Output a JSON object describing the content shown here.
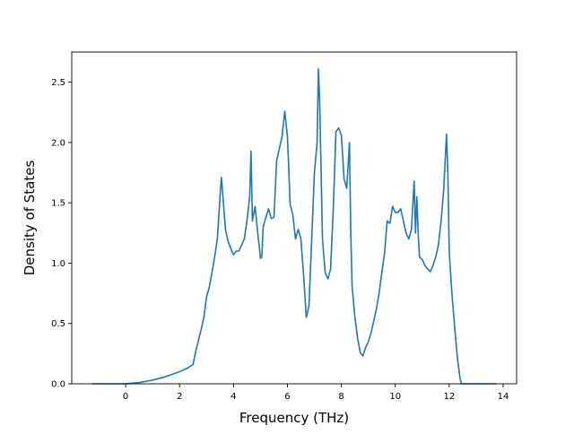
{
  "chart_data": {
    "type": "line",
    "title": "",
    "xlabel": "Frequency (THz)",
    "ylabel": "Density of States",
    "xlim": [
      -2.0,
      14.5
    ],
    "ylim": [
      0.0,
      2.75
    ],
    "xticks": [
      0,
      2,
      4,
      6,
      8,
      10,
      12,
      14
    ],
    "yticks": [
      0.0,
      0.5,
      1.0,
      1.5,
      2.0,
      2.5
    ],
    "xtick_labels": [
      "0",
      "2",
      "4",
      "6",
      "8",
      "10",
      "12",
      "14"
    ],
    "ytick_labels": [
      "0.0",
      "0.5",
      "1.0",
      "1.5",
      "2.0",
      "2.5"
    ],
    "grid": false,
    "legend": "none",
    "series": [
      {
        "name": "",
        "color": "#1f77b4",
        "x": [
          -1.25,
          0.0,
          0.5,
          1.0,
          1.5,
          2.0,
          2.3,
          2.5,
          2.6,
          2.8,
          2.9,
          3.0,
          3.1,
          3.2,
          3.3,
          3.4,
          3.5,
          3.55,
          3.6,
          3.7,
          3.8,
          3.9,
          4.0,
          4.1,
          4.2,
          4.3,
          4.4,
          4.5,
          4.6,
          4.65,
          4.7,
          4.8,
          4.9,
          5.0,
          5.05,
          5.1,
          5.2,
          5.3,
          5.4,
          5.5,
          5.6,
          5.7,
          5.8,
          5.9,
          6.0,
          6.05,
          6.1,
          6.2,
          6.3,
          6.4,
          6.5,
          6.6,
          6.7,
          6.8,
          6.9,
          7.0,
          7.1,
          7.15,
          7.2,
          7.3,
          7.4,
          7.5,
          7.6,
          7.7,
          7.8,
          7.9,
          8.0,
          8.1,
          8.2,
          8.3,
          8.35,
          8.4,
          8.5,
          8.6,
          8.7,
          8.8,
          8.9,
          9.0,
          9.1,
          9.2,
          9.3,
          9.4,
          9.5,
          9.6,
          9.7,
          9.8,
          9.9,
          10.0,
          10.1,
          10.2,
          10.3,
          10.4,
          10.5,
          10.6,
          10.7,
          10.75,
          10.8,
          10.85,
          10.9,
          11.0,
          11.1,
          11.2,
          11.3,
          11.4,
          11.5,
          11.6,
          11.7,
          11.8,
          11.9,
          11.95,
          12.0,
          12.1,
          12.2,
          12.3,
          12.4,
          12.45,
          12.5,
          13.75
        ],
        "values": [
          0.0,
          0.0,
          0.01,
          0.03,
          0.06,
          0.1,
          0.13,
          0.16,
          0.27,
          0.45,
          0.55,
          0.72,
          0.8,
          0.92,
          1.05,
          1.2,
          1.55,
          1.71,
          1.58,
          1.28,
          1.18,
          1.12,
          1.07,
          1.1,
          1.1,
          1.15,
          1.2,
          1.35,
          1.55,
          1.93,
          1.35,
          1.47,
          1.25,
          1.04,
          1.05,
          1.3,
          1.38,
          1.45,
          1.37,
          1.38,
          1.85,
          1.95,
          2.05,
          2.26,
          2.05,
          1.78,
          1.49,
          1.4,
          1.2,
          1.28,
          1.2,
          0.9,
          0.55,
          0.65,
          1.2,
          1.75,
          2.0,
          2.61,
          2.3,
          1.2,
          0.92,
          0.87,
          0.95,
          1.45,
          2.09,
          2.12,
          2.06,
          1.7,
          1.62,
          2.0,
          1.25,
          0.8,
          0.56,
          0.38,
          0.26,
          0.23,
          0.3,
          0.35,
          0.42,
          0.52,
          0.62,
          0.75,
          0.92,
          1.08,
          1.35,
          1.33,
          1.47,
          1.42,
          1.42,
          1.45,
          1.35,
          1.25,
          1.2,
          1.28,
          1.68,
          1.25,
          1.55,
          1.25,
          1.05,
          1.03,
          0.98,
          0.95,
          0.93,
          0.98,
          1.05,
          1.15,
          1.35,
          1.62,
          2.07,
          1.75,
          1.1,
          0.75,
          0.48,
          0.22,
          0.05,
          0.0,
          0.0,
          0.0
        ]
      }
    ]
  }
}
